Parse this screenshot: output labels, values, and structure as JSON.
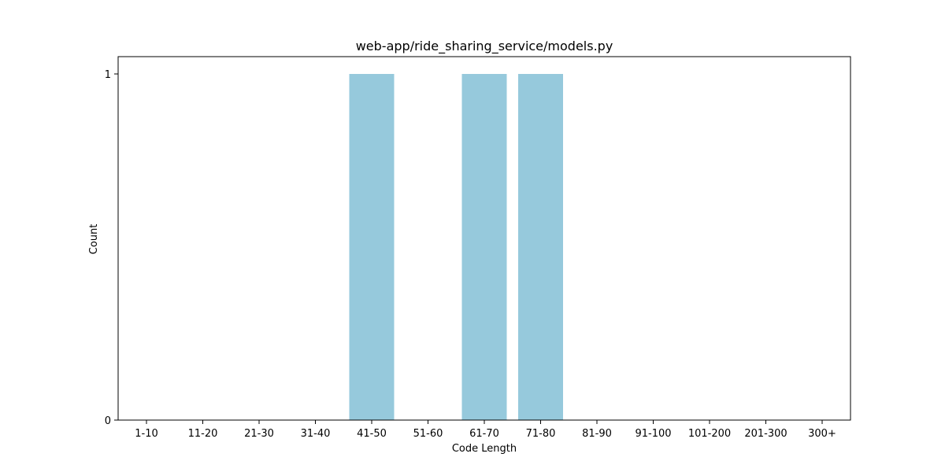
{
  "chart_data": {
    "type": "bar",
    "title": "web-app/ride_sharing_service/models.py",
    "xlabel": "Code Length",
    "ylabel": "Count",
    "categories": [
      "1-10",
      "11-20",
      "21-30",
      "31-40",
      "41-50",
      "51-60",
      "61-70",
      "71-80",
      "81-90",
      "91-100",
      "101-200",
      "201-300",
      "300+"
    ],
    "values": [
      0,
      0,
      0,
      0,
      1,
      0,
      1,
      1,
      0,
      0,
      0,
      0,
      0
    ],
    "ylim": [
      0,
      1
    ],
    "yticks": [
      "0",
      "1"
    ],
    "grid": false,
    "bar_color": "#96c9dc"
  }
}
